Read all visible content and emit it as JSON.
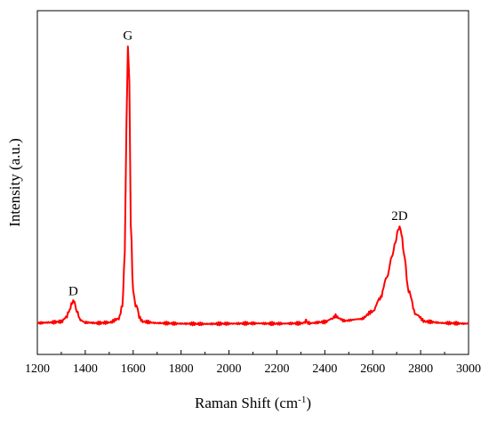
{
  "chart_data": {
    "type": "line",
    "xlabel": "Raman Shift (cm",
    "xlabel_sup": "-1",
    "xlabel_tail": ")",
    "ylabel": "Intensity (a.u.)",
    "xlim": [
      1200,
      3000
    ],
    "ylim": [
      0,
      1
    ],
    "x_ticks": [
      "1200",
      "1400",
      "1600",
      "1800",
      "2000",
      "2200",
      "2400",
      "2600",
      "2800",
      "3000"
    ],
    "y_ticks_shown": false,
    "grid": false,
    "legend": "none",
    "series": [
      {
        "color": "#ff0000",
        "x": [
          1200,
          1250,
          1300,
          1320,
          1335,
          1345,
          1350,
          1355,
          1365,
          1380,
          1400,
          1450,
          1500,
          1540,
          1555,
          1565,
          1572,
          1578,
          1584,
          1590,
          1600,
          1610,
          1618,
          1625,
          1640,
          1700,
          1800,
          1900,
          2000,
          2100,
          2200,
          2300,
          2318,
          2322,
          2326,
          2330,
          2340,
          2400,
          2430,
          2445,
          2460,
          2480,
          2550,
          2600,
          2630,
          2660,
          2680,
          2695,
          2705,
          2712,
          2720,
          2730,
          2750,
          2780,
          2820,
          2900,
          3000
        ],
        "y": [
          0.01,
          0.012,
          0.015,
          0.03,
          0.055,
          0.08,
          0.085,
          0.08,
          0.05,
          0.02,
          0.012,
          0.01,
          0.012,
          0.025,
          0.07,
          0.25,
          0.7,
          0.97,
          0.85,
          0.35,
          0.12,
          0.07,
          0.065,
          0.03,
          0.015,
          0.01,
          0.008,
          0.007,
          0.008,
          0.009,
          0.008,
          0.009,
          0.012,
          0.022,
          0.012,
          0.009,
          0.01,
          0.014,
          0.025,
          0.035,
          0.026,
          0.018,
          0.024,
          0.05,
          0.095,
          0.17,
          0.24,
          0.29,
          0.33,
          0.345,
          0.32,
          0.25,
          0.12,
          0.04,
          0.015,
          0.01,
          0.008
        ]
      }
    ],
    "annotations": [
      {
        "text": "D",
        "x": 1350,
        "y": 0.085
      },
      {
        "text": "G",
        "x": 1578,
        "y": 0.97
      },
      {
        "text": "2D",
        "x": 2712,
        "y": 0.345
      }
    ]
  }
}
